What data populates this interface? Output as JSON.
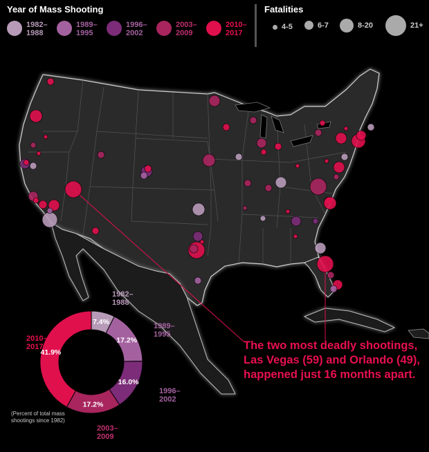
{
  "legend": {
    "year_title": "Year of Mass Shooting",
    "eras": [
      {
        "l1": "1982–",
        "l2": "1988",
        "color": "#b79ab8"
      },
      {
        "l1": "1989–",
        "l2": "1995",
        "color": "#a461a0"
      },
      {
        "l1": "1996–",
        "l2": "2002",
        "color": "#7c2c78"
      },
      {
        "l1": "2003–",
        "l2": "2009",
        "color": "#a8255e"
      },
      {
        "l1": "2010–",
        "l2": "2017",
        "color": "#e0104d"
      }
    ],
    "fatal_title": "Fatalities",
    "fatal": [
      {
        "label": "4-5",
        "d": 7
      },
      {
        "label": "6-7",
        "d": 13
      },
      {
        "label": "8-20",
        "d": 20
      },
      {
        "label": "21+",
        "d": 30
      }
    ]
  },
  "callout": {
    "line1": "The two most deadly shootings,",
    "line2": "Las Vegas (59) and Orlando (49),",
    "line3": "happened just 16 months apart."
  },
  "donut": {
    "note_l1": "(Percent of total mass",
    "note_l2": "shootings since 1982)",
    "slices": [
      {
        "era": "1982–1988",
        "pct": "7.4%",
        "value": 7.4
      },
      {
        "era": "1989–1995",
        "pct": "17.2%",
        "value": 17.2
      },
      {
        "era": "1996–2002",
        "pct": "16.0%",
        "value": 16.0
      },
      {
        "era": "2003–2009",
        "pct": "17.2%",
        "value": 17.2
      },
      {
        "era": "2010–2017",
        "pct": "41.9%",
        "value": 41.9
      }
    ]
  }
}
